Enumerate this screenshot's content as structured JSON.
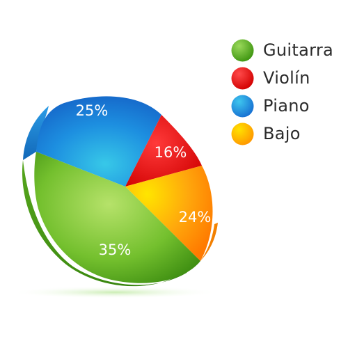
{
  "chart_data": {
    "type": "pie",
    "style": "3d-tilted",
    "legend_position": "top-right",
    "labels_on_slices": true,
    "slices": [
      {
        "label": "Guitarra",
        "value": 35,
        "display": "35%",
        "color": "#6ab82a"
      },
      {
        "label": "Violín",
        "value": 16,
        "display": "16%",
        "color": "#e81010"
      },
      {
        "label": "Piano",
        "value": 25,
        "display": "25%",
        "color": "#2291e0"
      },
      {
        "label": "Bajo",
        "value": 24,
        "display": "24%",
        "color": "#ff9b0a"
      }
    ]
  }
}
